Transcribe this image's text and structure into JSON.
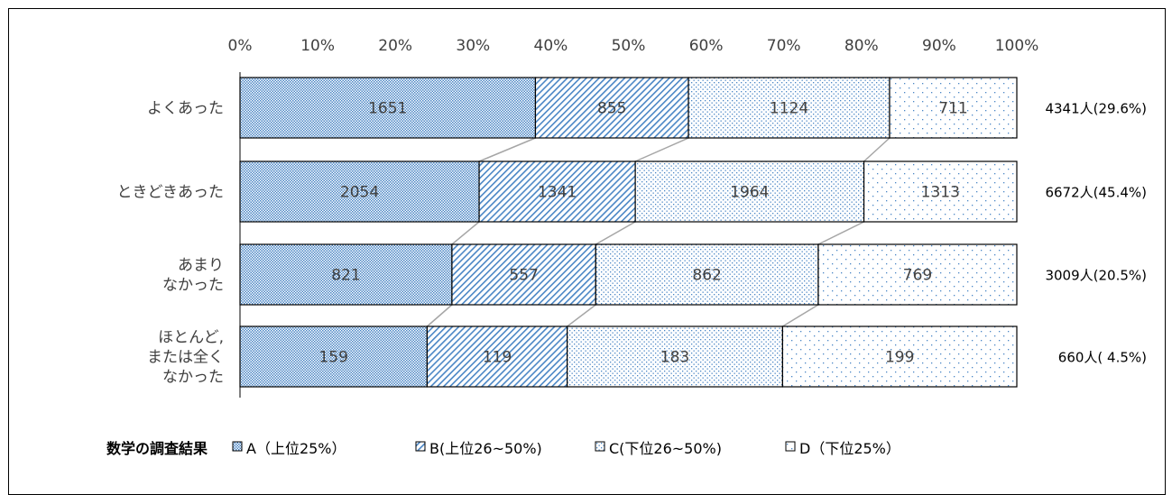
{
  "chart_data": {
    "type": "bar",
    "orientation": "horizontal",
    "stacked": "percent",
    "x_tick_labels": [
      "0%",
      "10%",
      "20%",
      "30%",
      "40%",
      "50%",
      "60%",
      "70%",
      "80%",
      "90%",
      "100%"
    ],
    "xlim": [
      0,
      100
    ],
    "grid": false,
    "categories": [
      [
        "よくあった"
      ],
      [
        "ときどきあった"
      ],
      [
        "あまり",
        "なかった"
      ],
      [
        "ほとんど,",
        "または全く",
        "なかった"
      ]
    ],
    "series": [
      {
        "name": "A（上位25%）",
        "values": [
          1651,
          2054,
          821,
          159
        ]
      },
      {
        "name": "B(上位26~50%)",
        "values": [
          855,
          1341,
          557,
          119
        ]
      },
      {
        "name": "C(下位26~50%)",
        "values": [
          1124,
          1964,
          862,
          183
        ]
      },
      {
        "name": "D（下位25%）",
        "values": [
          711,
          1313,
          769,
          199
        ]
      }
    ],
    "totals": [
      "4341人(29.6%)",
      "6672人(45.4%)",
      "3009人(20.5%)",
      "660人( 4.5%)"
    ],
    "legend_title": "数学の調査結果",
    "legend_position": "bottom-left",
    "series_lines": true
  },
  "colors": {
    "pattern_blue": "#4a86c5",
    "border": "#000000",
    "connector": "#a6a6a6",
    "text": "#404040"
  }
}
